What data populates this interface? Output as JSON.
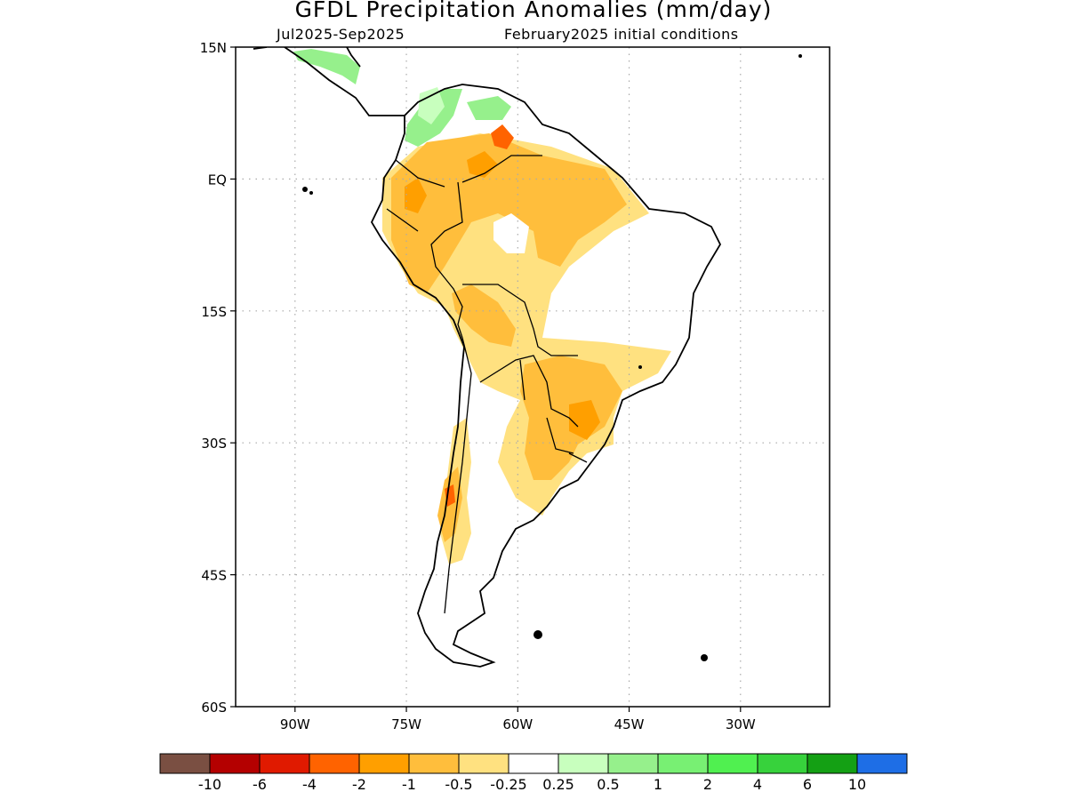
{
  "title": "GFDL Precipitation Anomalies (mm/day)",
  "subtitle_left": "Jul2025-Sep2025",
  "subtitle_right": "February2025 initial conditions",
  "map": {
    "lat_range": [
      -60,
      15
    ],
    "lon_range": [
      -98,
      -18
    ],
    "lat_ticks": [
      {
        "value": 15,
        "label": "15N"
      },
      {
        "value": 0,
        "label": "EQ"
      },
      {
        "value": -15,
        "label": "15S"
      },
      {
        "value": -30,
        "label": "30S"
      },
      {
        "value": -45,
        "label": "45S"
      },
      {
        "value": -60,
        "label": "60S"
      }
    ],
    "lon_ticks": [
      {
        "value": -90,
        "label": "90W"
      },
      {
        "value": -75,
        "label": "75W"
      },
      {
        "value": -60,
        "label": "60W"
      },
      {
        "value": -45,
        "label": "45W"
      },
      {
        "value": -30,
        "label": "30W"
      }
    ],
    "grid": "dotted"
  },
  "colorbar": {
    "colors": [
      "#7a4f42",
      "#b40000",
      "#e01a00",
      "#ff6300",
      "#ff9f00",
      "#ffbe3c",
      "#ffe180",
      "#ffffff",
      "#c8ffbe",
      "#96f08c",
      "#78f073",
      "#50f050",
      "#37d23c",
      "#14a014",
      "#1e6ee6"
    ],
    "labels": [
      "-10",
      "-6",
      "-4",
      "-2",
      "-1",
      "-0.5",
      "-0.25",
      "0.25",
      "0.5",
      "1",
      "2",
      "4",
      "6",
      "10"
    ]
  },
  "colors": {
    "frame": "#000000",
    "grid": "#aaaaaa",
    "coast": "#000000"
  }
}
